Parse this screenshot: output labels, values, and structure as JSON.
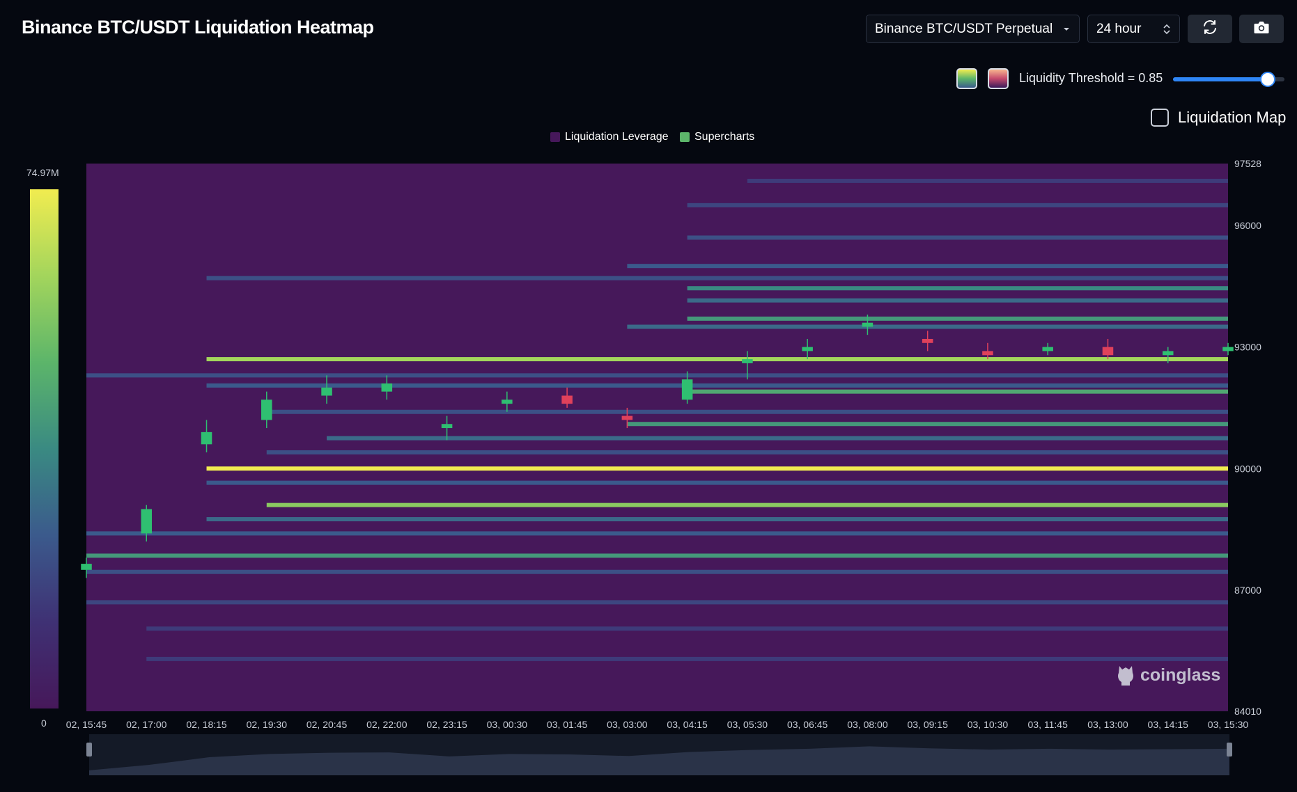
{
  "header": {
    "title": "Binance BTC/USDT Liquidation Heatmap",
    "exchange_select": "Binance BTC/USDT Perpetual",
    "timeframe_select": "24 hour",
    "refresh_icon": "refresh-icon",
    "camera_icon": "camera-icon"
  },
  "controls": {
    "threshold_label": "Liquidity Threshold = 0.85",
    "threshold_value": 0.85,
    "liquidation_map_label": "Liquidation Map",
    "liquidation_map_checked": false,
    "swatch_viridis_colors": [
      "#f1ec50",
      "#5cb56a",
      "#3b5a8c"
    ],
    "swatch_magma_colors": [
      "#f7b58e",
      "#c54a6d",
      "#3a1a5a"
    ]
  },
  "legend": {
    "items": [
      {
        "label": "Liquidation Leverage",
        "color": "#46185a"
      },
      {
        "label": "Supercharts",
        "color": "#5cb56a"
      }
    ]
  },
  "color_scale": {
    "max_label": "74.97M",
    "min_label": "0",
    "colors": [
      "#f1ec50",
      "#a3d55c",
      "#5cb56a",
      "#3a8a82",
      "#3b5a8c",
      "#3f3174",
      "#46185a"
    ]
  },
  "watermark": "coinglass",
  "chart_data": {
    "type": "heatmap",
    "title": "Binance BTC/USDT Liquidation Heatmap",
    "background_color": "#46185a",
    "y_axis": {
      "min": 84010,
      "max": 97528,
      "tick_labels": [
        "97528",
        "96000",
        "93000",
        "90000",
        "87000",
        "84010"
      ],
      "tick_values": [
        97528,
        96000,
        93000,
        90000,
        87000,
        84010
      ]
    },
    "x_axis": {
      "tick_labels": [
        "02, 15:45",
        "02, 17:00",
        "02, 18:15",
        "02, 19:30",
        "02, 20:45",
        "02, 22:00",
        "02, 23:15",
        "03, 00:30",
        "03, 01:45",
        "03, 03:00",
        "03, 04:15",
        "03, 05:30",
        "03, 06:45",
        "03, 08:00",
        "03, 09:15",
        "03, 10:30",
        "03, 11:45",
        "03, 13:00",
        "03, 14:15",
        "03, 15:30"
      ]
    },
    "liquidation_levels": [
      {
        "price": 90000,
        "intensity": 1.0,
        "start": "02, 18:15"
      },
      {
        "price": 92700,
        "intensity": 0.85,
        "start": "02, 18:15"
      },
      {
        "price": 89100,
        "intensity": 0.8,
        "start": "02, 19:30"
      },
      {
        "price": 87850,
        "intensity": 0.6,
        "start": "02, 15:45"
      },
      {
        "price": 94450,
        "intensity": 0.55,
        "start": "03, 04:15"
      },
      {
        "price": 94150,
        "intensity": 0.45,
        "start": "03, 04:15"
      },
      {
        "price": 93700,
        "intensity": 0.6,
        "start": "03, 04:15"
      },
      {
        "price": 93500,
        "intensity": 0.45,
        "start": "03, 03:00"
      },
      {
        "price": 91900,
        "intensity": 0.65,
        "start": "03, 04:15"
      },
      {
        "price": 91100,
        "intensity": 0.6,
        "start": "03, 03:00"
      },
      {
        "price": 90750,
        "intensity": 0.45,
        "start": "02, 20:45"
      },
      {
        "price": 89650,
        "intensity": 0.4,
        "start": "02, 18:15"
      },
      {
        "price": 88750,
        "intensity": 0.45,
        "start": "02, 18:15"
      },
      {
        "price": 88400,
        "intensity": 0.4,
        "start": "02, 15:45"
      },
      {
        "price": 95000,
        "intensity": 0.4,
        "start": "03, 03:00"
      },
      {
        "price": 94700,
        "intensity": 0.35,
        "start": "02, 18:15"
      },
      {
        "price": 95700,
        "intensity": 0.35,
        "start": "03, 04:15"
      },
      {
        "price": 92300,
        "intensity": 0.35,
        "start": "02, 15:45"
      },
      {
        "price": 92050,
        "intensity": 0.4,
        "start": "02, 18:15"
      },
      {
        "price": 91400,
        "intensity": 0.35,
        "start": "02, 19:30"
      },
      {
        "price": 90400,
        "intensity": 0.35,
        "start": "02, 19:30"
      },
      {
        "price": 87450,
        "intensity": 0.35,
        "start": "02, 15:45"
      },
      {
        "price": 86700,
        "intensity": 0.3,
        "start": "02, 15:45"
      },
      {
        "price": 86050,
        "intensity": 0.25,
        "start": "02, 17:00"
      },
      {
        "price": 85300,
        "intensity": 0.25,
        "start": "02, 17:00"
      },
      {
        "price": 96500,
        "intensity": 0.3,
        "start": "03, 04:15"
      },
      {
        "price": 97100,
        "intensity": 0.25,
        "start": "03, 05:30"
      }
    ],
    "candles": [
      {
        "t": "02, 15:45",
        "o": 87500,
        "h": 87800,
        "l": 87300,
        "c": 87650
      },
      {
        "t": "02, 17:00",
        "o": 88400,
        "h": 89100,
        "l": 88200,
        "c": 89000
      },
      {
        "t": "02, 18:15",
        "o": 90600,
        "h": 91200,
        "l": 90400,
        "c": 90900
      },
      {
        "t": "02, 19:30",
        "o": 91200,
        "h": 91900,
        "l": 91000,
        "c": 91700
      },
      {
        "t": "02, 20:45",
        "o": 91800,
        "h": 92300,
        "l": 91600,
        "c": 92000
      },
      {
        "t": "02, 22:00",
        "o": 91900,
        "h": 92300,
        "l": 91700,
        "c": 92100
      },
      {
        "t": "02, 23:15",
        "o": 91000,
        "h": 91300,
        "l": 90700,
        "c": 91100
      },
      {
        "t": "03, 00:30",
        "o": 91600,
        "h": 91900,
        "l": 91400,
        "c": 91700
      },
      {
        "t": "03, 01:45",
        "o": 91800,
        "h": 92000,
        "l": 91500,
        "c": 91600
      },
      {
        "t": "03, 03:00",
        "o": 91300,
        "h": 91500,
        "l": 91000,
        "c": 91200
      },
      {
        "t": "03, 04:15",
        "o": 91700,
        "h": 92400,
        "l": 91600,
        "c": 92200
      },
      {
        "t": "03, 05:30",
        "o": 92600,
        "h": 92900,
        "l": 92200,
        "c": 92700
      },
      {
        "t": "03, 06:45",
        "o": 92900,
        "h": 93200,
        "l": 92700,
        "c": 93000
      },
      {
        "t": "03, 08:00",
        "o": 93500,
        "h": 93800,
        "l": 93300,
        "c": 93600
      },
      {
        "t": "03, 09:15",
        "o": 93200,
        "h": 93400,
        "l": 92900,
        "c": 93100
      },
      {
        "t": "03, 10:30",
        "o": 92900,
        "h": 93100,
        "l": 92700,
        "c": 92800
      },
      {
        "t": "03, 11:45",
        "o": 92900,
        "h": 93100,
        "l": 92800,
        "c": 93000
      },
      {
        "t": "03, 13:00",
        "o": 93000,
        "h": 93200,
        "l": 92700,
        "c": 92800
      },
      {
        "t": "03, 14:15",
        "o": 92800,
        "h": 93000,
        "l": 92600,
        "c": 92900
      },
      {
        "t": "03, 15:30",
        "o": 92900,
        "h": 93100,
        "l": 92800,
        "c": 93000
      }
    ],
    "candle_colors": {
      "up": "#2fbf71",
      "down": "#e0415b"
    },
    "grid": false
  }
}
